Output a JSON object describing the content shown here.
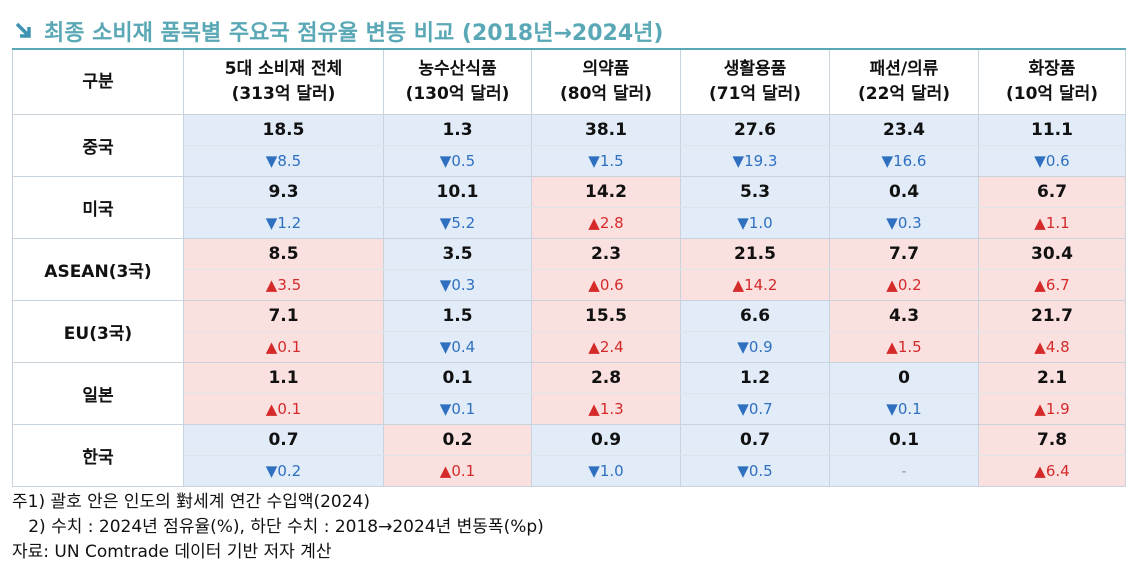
{
  "title": "최종 소비재 품목별 주요국 점유율 변동 비교 (2018년→2024년)",
  "table": {
    "corner": "구분",
    "columns": [
      {
        "name": "5대 소비재 전체",
        "sub": "(313억 달러)"
      },
      {
        "name": "농수산식품",
        "sub": "(130억 달러)"
      },
      {
        "name": "의약품",
        "sub": "(80억 달러)"
      },
      {
        "name": "생활용품",
        "sub": "(71억 달러)"
      },
      {
        "name": "패션/의류",
        "sub": "(22억 달러)"
      },
      {
        "name": "화장품",
        "sub": "(10억 달러)"
      }
    ],
    "rows": [
      {
        "label": "중국",
        "cells": [
          {
            "value": "18.5",
            "change": "▼8.5"
          },
          {
            "value": "1.3",
            "change": "▼0.5"
          },
          {
            "value": "38.1",
            "change": "▼1.5"
          },
          {
            "value": "27.6",
            "change": "▼19.3"
          },
          {
            "value": "23.4",
            "change": "▼16.6"
          },
          {
            "value": "11.1",
            "change": "▼0.6"
          }
        ]
      },
      {
        "label": "미국",
        "cells": [
          {
            "value": "9.3",
            "change": "▼1.2"
          },
          {
            "value": "10.1",
            "change": "▼5.2"
          },
          {
            "value": "14.2",
            "change": "▲2.8"
          },
          {
            "value": "5.3",
            "change": "▼1.0"
          },
          {
            "value": "0.4",
            "change": "▼0.3"
          },
          {
            "value": "6.7",
            "change": "▲1.1"
          }
        ]
      },
      {
        "label": "ASEAN(3국)",
        "cells": [
          {
            "value": "8.5",
            "change": "▲3.5"
          },
          {
            "value": "3.5",
            "change": "▼0.3"
          },
          {
            "value": "2.3",
            "change": "▲0.6"
          },
          {
            "value": "21.5",
            "change": "▲14.2"
          },
          {
            "value": "7.7",
            "change": "▲0.2"
          },
          {
            "value": "30.4",
            "change": "▲6.7"
          }
        ]
      },
      {
        "label": "EU(3국)",
        "cells": [
          {
            "value": "7.1",
            "change": "▲0.1"
          },
          {
            "value": "1.5",
            "change": "▼0.4"
          },
          {
            "value": "15.5",
            "change": "▲2.4"
          },
          {
            "value": "6.6",
            "change": "▼0.9"
          },
          {
            "value": "4.3",
            "change": "▲1.5"
          },
          {
            "value": "21.7",
            "change": "▲4.8"
          }
        ]
      },
      {
        "label": "일본",
        "cells": [
          {
            "value": "1.1",
            "change": "▲0.1"
          },
          {
            "value": "0.1",
            "change": "▼0.1"
          },
          {
            "value": "2.8",
            "change": "▲1.3"
          },
          {
            "value": "1.2",
            "change": "▼0.7"
          },
          {
            "value": "0",
            "change": "▼0.1"
          },
          {
            "value": "2.1",
            "change": "▲1.9"
          }
        ]
      },
      {
        "label": "한국",
        "cells": [
          {
            "value": "0.7",
            "change": "▼0.2"
          },
          {
            "value": "0.2",
            "change": "▲0.1"
          },
          {
            "value": "0.9",
            "change": "▼1.0"
          },
          {
            "value": "0.7",
            "change": "▼0.5"
          },
          {
            "value": "0.1",
            "change": "-"
          },
          {
            "value": "7.8",
            "change": "▲6.4"
          }
        ]
      }
    ]
  },
  "notes": [
    "주1) 괄호 안은 인도의 對세계 연간 수입액(2024)",
    "   2) 수치 : 2024년 점유율(%), 하단 수치 : 2018→2024년 변동폭(%p)",
    "자료: UN Comtrade 데이터 기반 저자 계산"
  ]
}
